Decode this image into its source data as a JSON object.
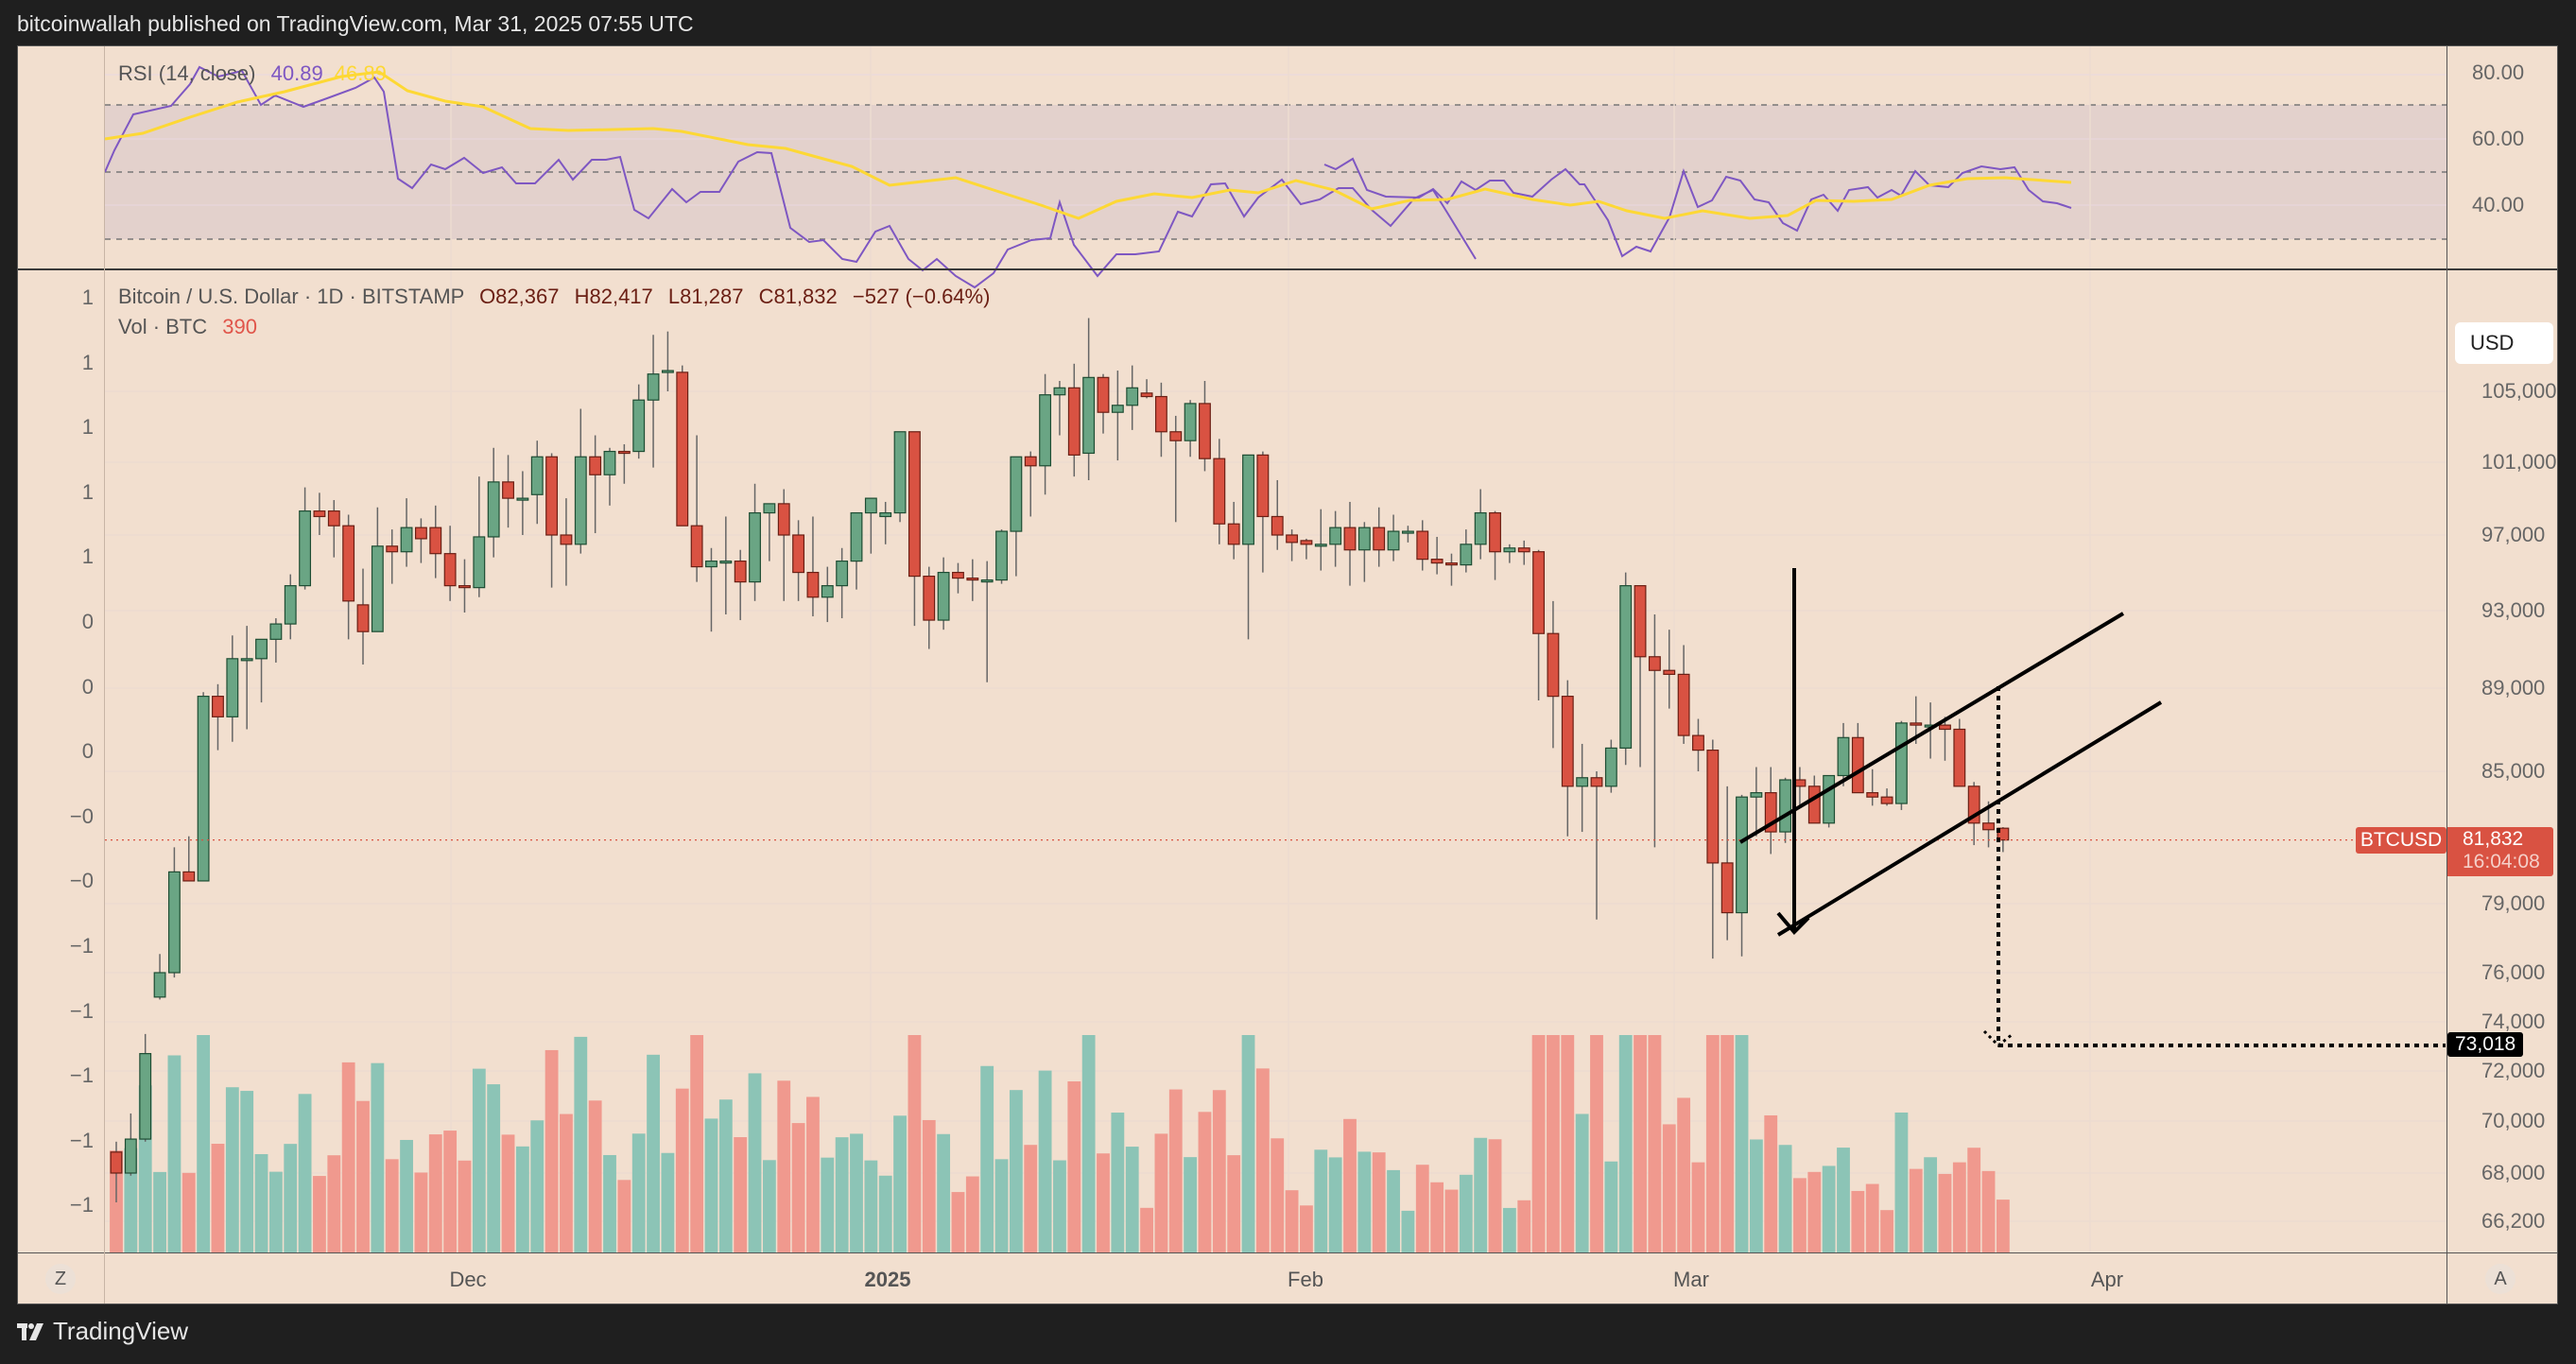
{
  "header": {
    "published": "bitcoinwallah published on TradingView.com, Mar 31, 2025 07:55 UTC"
  },
  "rsi": {
    "label": "RSI (14, close)",
    "value": "40.89",
    "ma_value": "46.89",
    "colors": {
      "rsi": "#7e57c2",
      "ma": "#fdd835",
      "band": "#e3d1cc"
    },
    "axis_ticks": [
      "80.00",
      "60.00",
      "40.00"
    ]
  },
  "main": {
    "symbol_line": "Bitcoin / U.S. Dollar · 1D · BITSTAMP",
    "ohlc": {
      "open": "O82,367",
      "high": "H82,417",
      "low": "L81,287",
      "close": "C81,832",
      "change": "−527 (−0.64%)"
    },
    "vol_label": "Vol · BTC",
    "vol_value": "390",
    "currency_button": "USD",
    "price_axis": [
      "105,000",
      "101,000",
      "97,000",
      "93,000",
      "89,000",
      "85,000",
      "79,000",
      "76,000",
      "74,000",
      "72,000",
      "70,000",
      "68,000",
      "66,200"
    ],
    "left_axis": [
      "1",
      "1",
      "1",
      "1",
      "1",
      "0",
      "0",
      "0",
      "−0",
      "−0",
      "−1",
      "−1",
      "−1",
      "−1",
      "−1"
    ],
    "last_price": {
      "symbol": "BTCUSD",
      "price": "81,832",
      "countdown": "16:04:08"
    },
    "target": {
      "price": "73,018"
    },
    "time_axis": [
      "Dec",
      "2025",
      "Feb",
      "Mar",
      "Apr"
    ],
    "z_button": "Z",
    "a_button": "A",
    "colors": {
      "up": "#6aa584",
      "down": "#d95242",
      "vol_up": "#8cc4b6",
      "vol_down": "#f0998e",
      "bg": "#f2dfcf"
    }
  },
  "footer": {
    "brand": "TradingView"
  },
  "chart_data": {
    "type": "candlestick",
    "title": "Bitcoin / U.S. Dollar · 1D · BITSTAMP",
    "scale": "log",
    "ylim": [
      64000,
      110000
    ],
    "x_range": "Nov 2024 – Mar 31 2025",
    "xticks": [
      "Dec",
      "2025",
      "Feb",
      "Mar",
      "Apr"
    ],
    "candles": [
      [
        68800,
        69200,
        66900,
        68000
      ],
      [
        68000,
        70300,
        67900,
        69300
      ],
      [
        69300,
        73500,
        69200,
        72700
      ],
      [
        75000,
        76800,
        74900,
        76000
      ],
      [
        76000,
        81500,
        75800,
        80400
      ],
      [
        80400,
        82000,
        80000,
        80000
      ],
      [
        80000,
        88800,
        80000,
        88600
      ],
      [
        88600,
        89200,
        86000,
        87600
      ],
      [
        87600,
        91700,
        86400,
        90500
      ],
      [
        90500,
        92200,
        87000,
        90500
      ],
      [
        90500,
        91200,
        88300,
        91500
      ],
      [
        91500,
        92600,
        90300,
        92300
      ],
      [
        92300,
        94900,
        91500,
        94300
      ],
      [
        94300,
        99600,
        94100,
        98300
      ],
      [
        98300,
        99300,
        97000,
        98000
      ],
      [
        98300,
        98900,
        95800,
        97500
      ],
      [
        97500,
        98100,
        91500,
        93500
      ],
      [
        93300,
        95200,
        90200,
        91900
      ],
      [
        91900,
        98500,
        91900,
        96400
      ],
      [
        96400,
        97300,
        94400,
        96100
      ],
      [
        96100,
        99000,
        95300,
        97400
      ],
      [
        97400,
        97900,
        95500,
        96800
      ],
      [
        97400,
        98600,
        94700,
        96000
      ],
      [
        96000,
        97500,
        93500,
        94300
      ],
      [
        94300,
        95700,
        92900,
        94200
      ],
      [
        94200,
        100200,
        93700,
        96900
      ],
      [
        96900,
        101800,
        95800,
        99900
      ],
      [
        99900,
        101400,
        97400,
        99000
      ],
      [
        99000,
        100500,
        97000,
        99000
      ],
      [
        99200,
        102200,
        97600,
        101300
      ],
      [
        101300,
        101500,
        94200,
        97000
      ],
      [
        97000,
        99000,
        94300,
        96500
      ],
      [
        96500,
        104000,
        96000,
        101300
      ],
      [
        101300,
        102500,
        97100,
        100300
      ],
      [
        100300,
        101800,
        98600,
        101600
      ],
      [
        101600,
        102000,
        99800,
        101500
      ],
      [
        101600,
        105400,
        101200,
        104500
      ],
      [
        104500,
        108300,
        100700,
        106000
      ],
      [
        106100,
        108500,
        105000,
        106200
      ],
      [
        106100,
        106500,
        100400,
        97500
      ],
      [
        97500,
        102500,
        94500,
        95300
      ],
      [
        95300,
        96300,
        91900,
        95600
      ],
      [
        95600,
        98000,
        92800,
        95600
      ],
      [
        95600,
        96200,
        92500,
        94500
      ],
      [
        94500,
        99800,
        93500,
        98200
      ],
      [
        98200,
        98500,
        95600,
        98700
      ],
      [
        98700,
        99500,
        93500,
        97000
      ],
      [
        97000,
        97800,
        93500,
        95000
      ],
      [
        95000,
        98000,
        92700,
        93700
      ],
      [
        93700,
        95300,
        92400,
        94300
      ],
      [
        94300,
        96300,
        92600,
        95600
      ],
      [
        95600,
        98000,
        94100,
        98200
      ],
      [
        98200,
        98900,
        96000,
        99000
      ],
      [
        98000,
        98800,
        96500,
        98200
      ],
      [
        98200,
        102500,
        97700,
        102700
      ],
      [
        102700,
        102500,
        92200,
        94800
      ],
      [
        94800,
        95300,
        91000,
        92500
      ],
      [
        92500,
        95800,
        92000,
        95000
      ],
      [
        95000,
        95500,
        93900,
        94700
      ],
      [
        94700,
        95700,
        93500,
        94600
      ],
      [
        94600,
        95600,
        89300,
        94600
      ],
      [
        94600,
        97300,
        94400,
        97200
      ],
      [
        97200,
        100500,
        94800,
        101300
      ],
      [
        101300,
        101600,
        98000,
        100800
      ],
      [
        100800,
        106000,
        99200,
        104800
      ],
      [
        104800,
        105600,
        102500,
        105200
      ],
      [
        105200,
        106600,
        100200,
        101400
      ],
      [
        101500,
        109300,
        100000,
        105800
      ],
      [
        105800,
        106000,
        102600,
        103800
      ],
      [
        103800,
        106200,
        101100,
        104200
      ],
      [
        104200,
        106500,
        102800,
        105200
      ],
      [
        104900,
        105700,
        104600,
        104700
      ],
      [
        104700,
        105500,
        101300,
        102700
      ],
      [
        102700,
        103600,
        97700,
        102200
      ],
      [
        102200,
        104500,
        101300,
        104300
      ],
      [
        104300,
        105600,
        100500,
        101200
      ],
      [
        101200,
        102300,
        96500,
        97600
      ],
      [
        97600,
        98800,
        95700,
        96500
      ],
      [
        96500,
        101200,
        91500,
        101400
      ],
      [
        101400,
        101600,
        95000,
        98000
      ],
      [
        98000,
        100000,
        96200,
        97000
      ],
      [
        97000,
        97300,
        95600,
        96600
      ],
      [
        96700,
        96800,
        95700,
        96500
      ],
      [
        96500,
        98400,
        95100,
        96500
      ],
      [
        96500,
        98300,
        95300,
        97400
      ],
      [
        97400,
        98800,
        94300,
        96200
      ],
      [
        96200,
        97700,
        94500,
        97400
      ],
      [
        97400,
        98500,
        95300,
        96200
      ],
      [
        96200,
        98100,
        95600,
        97200
      ],
      [
        97200,
        97500,
        96600,
        97200
      ],
      [
        97200,
        97800,
        95100,
        95700
      ],
      [
        95700,
        96900,
        94900,
        95500
      ],
      [
        95500,
        96000,
        94300,
        95400
      ],
      [
        95400,
        97300,
        95000,
        96500
      ],
      [
        96500,
        99500,
        95700,
        98200
      ],
      [
        98200,
        98300,
        94600,
        96100
      ],
      [
        96100,
        96500,
        95500,
        96300
      ],
      [
        96300,
        96700,
        95400,
        96100
      ],
      [
        96100,
        96200,
        88400,
        91800
      ],
      [
        91800,
        93500,
        86100,
        88600
      ],
      [
        88600,
        89400,
        82000,
        84300
      ],
      [
        84300,
        86300,
        82200,
        84700
      ],
      [
        84700,
        85000,
        78300,
        84300
      ],
      [
        84300,
        86500,
        84000,
        86100
      ],
      [
        86100,
        95000,
        85300,
        94300
      ],
      [
        94300,
        94300,
        85200,
        90600
      ],
      [
        90600,
        92800,
        81500,
        89900
      ],
      [
        89900,
        92000,
        88000,
        89700
      ],
      [
        89700,
        91200,
        86300,
        86700
      ],
      [
        86700,
        87500,
        85000,
        86000
      ],
      [
        86000,
        86500,
        76600,
        80800
      ],
      [
        80800,
        84300,
        77400,
        78600
      ],
      [
        78600,
        83900,
        76700,
        83800
      ],
      [
        83800,
        85200,
        82000,
        84000
      ],
      [
        84000,
        85200,
        81200,
        82200
      ],
      [
        82200,
        84700,
        81700,
        84600
      ],
      [
        84600,
        85200,
        83300,
        84300
      ],
      [
        84300,
        84800,
        82700,
        82600
      ],
      [
        82600,
        84700,
        82400,
        84800
      ],
      [
        84800,
        87300,
        84300,
        86600
      ],
      [
        86600,
        87300,
        85800,
        84000
      ],
      [
        84000,
        85100,
        83400,
        83800
      ],
      [
        83800,
        84200,
        83400,
        83500
      ],
      [
        83500,
        87400,
        83200,
        87300
      ],
      [
        87300,
        88600,
        86300,
        87200
      ],
      [
        87200,
        88300,
        85600,
        87200
      ],
      [
        87200,
        87600,
        85500,
        87000
      ],
      [
        87000,
        87500,
        85000,
        84300
      ],
      [
        84300,
        84500,
        81600,
        82600
      ],
      [
        82600,
        83600,
        81500,
        82300
      ],
      [
        82367,
        82417,
        81287,
        81832
      ]
    ],
    "volume_labels": "Vol · BTC 390",
    "rsi": {
      "value": 40.89,
      "ma": 46.89,
      "levels": [
        70,
        50,
        30
      ],
      "ylim": [
        20,
        90
      ]
    },
    "annotations": [
      {
        "type": "rising_channel",
        "upper": [
          [
            1840,
            890
          ],
          [
            2245,
            648
          ]
        ],
        "lower": [
          [
            1880,
            988
          ],
          [
            2285,
            742
          ]
        ]
      },
      {
        "type": "flagpole_arrow",
        "from": [
          1897,
          600
        ],
        "to": [
          1897,
          985
        ]
      },
      {
        "type": "target_arrow",
        "price": 73018,
        "label": "73,018"
      }
    ]
  }
}
